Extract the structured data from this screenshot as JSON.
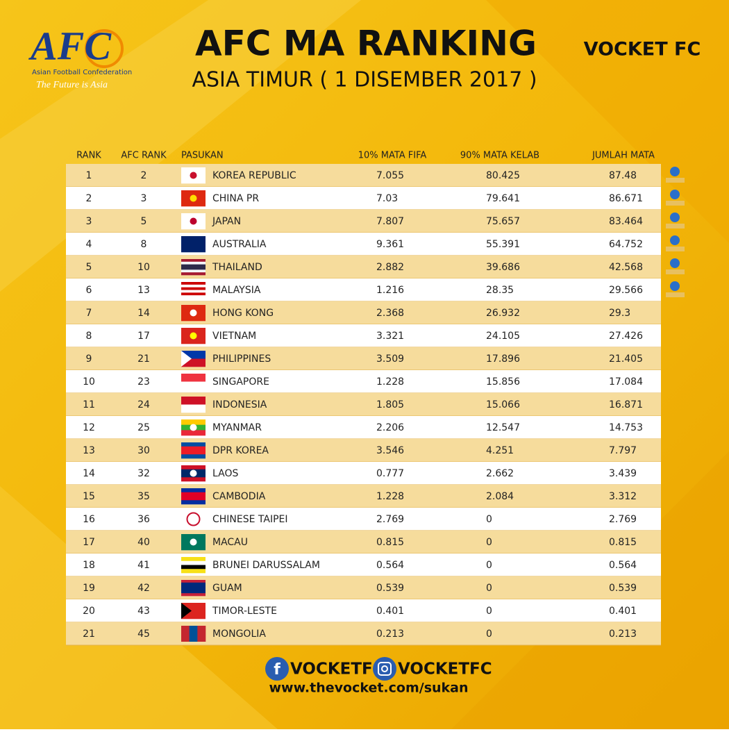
{
  "header": {
    "logo": "AFC",
    "logo_caption": "Asian Football Confederation",
    "logo_tagline": "The Future is Asia",
    "title": "AFC MA RANKING",
    "subtitle": "ASIA TIMUR ( 1 DISEMBER 2017 )",
    "brand": "VOCKET FC"
  },
  "table": {
    "columns": [
      "RANK",
      "AFC RANK",
      "PASUKAN",
      "10% MATA FIFA",
      "90% MATA KELAB",
      "JUMLAH MATA"
    ],
    "rows": [
      [
        1,
        2,
        "KOREA REPUBLIC",
        7.055,
        80.425,
        87.48
      ],
      [
        2,
        3,
        "CHINA PR",
        7.03,
        79.641,
        86.671
      ],
      [
        3,
        5,
        "JAPAN",
        7.807,
        75.657,
        83.464
      ],
      [
        4,
        8,
        "AUSTRALIA",
        9.361,
        55.391,
        64.752
      ],
      [
        5,
        10,
        "THAILAND",
        2.882,
        39.686,
        42.568
      ],
      [
        6,
        13,
        "MALAYSIA",
        1.216,
        28.35,
        29.566
      ],
      [
        7,
        14,
        "HONG KONG",
        2.368,
        26.932,
        29.3
      ],
      [
        8,
        17,
        "VIETNAM",
        3.321,
        24.105,
        27.426
      ],
      [
        9,
        21,
        "PHILIPPINES",
        3.509,
        17.896,
        21.405
      ],
      [
        10,
        23,
        "SINGAPORE",
        1.228,
        15.856,
        17.084
      ],
      [
        11,
        24,
        "INDONESIA",
        1.805,
        15.066,
        16.871
      ],
      [
        12,
        25,
        "MYANMAR",
        2.206,
        12.547,
        14.753
      ],
      [
        13,
        30,
        "DPR KOREA",
        3.546,
        4.251,
        7.797
      ],
      [
        14,
        32,
        "LAOS",
        0.777,
        2.662,
        3.439
      ],
      [
        15,
        35,
        "CAMBODIA",
        1.228,
        2.084,
        3.312
      ],
      [
        16,
        36,
        "CHINESE TAIPEI",
        2.769,
        0,
        2.769
      ],
      [
        17,
        40,
        "MACAU",
        0.815,
        0,
        0.815
      ],
      [
        18,
        41,
        "BRUNEI DARUSSALAM",
        0.564,
        0,
        0.564
      ],
      [
        19,
        42,
        "GUAM",
        0.539,
        0,
        0.539
      ],
      [
        20,
        43,
        "TIMOR-LESTE",
        0.401,
        0,
        0.401
      ],
      [
        21,
        45,
        "MONGOLIA",
        0.213,
        0,
        0.213
      ]
    ]
  },
  "footer": {
    "facebook": "VOCKETFC",
    "instagram": "VOCKETFC",
    "url": "www.thevocket.com/sukan"
  }
}
